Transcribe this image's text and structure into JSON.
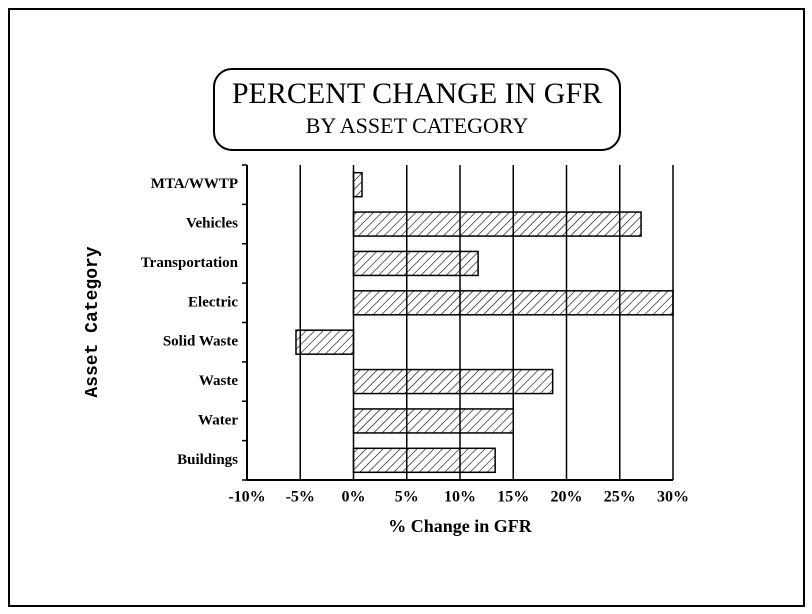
{
  "chart_data": {
    "type": "bar",
    "orientation": "horizontal",
    "title": "PERCENT CHANGE IN GFR",
    "subtitle": "BY ASSET CATEGORY",
    "x_label": "% Change in GFR",
    "y_label": "Asset Category",
    "categories": [
      "MTA/WWTP",
      "Vehicles",
      "Transportation",
      "Electric",
      "Solid Waste",
      "Waste",
      "Water",
      "Buildings"
    ],
    "values": [
      0.8,
      27,
      11.7,
      30,
      -5.4,
      18.7,
      15,
      13.3
    ],
    "color": "#000000",
    "xlim": [
      -10,
      30
    ],
    "xticks": [
      {
        "value": -10,
        "label": "-10%"
      },
      {
        "value": -5,
        "label": "-5%"
      },
      {
        "value": 0,
        "label": "0%"
      },
      {
        "value": 5,
        "label": "5%"
      },
      {
        "value": 10,
        "label": "10%"
      },
      {
        "value": 15,
        "label": "15%"
      },
      {
        "value": 20,
        "label": "20%"
      },
      {
        "value": 25,
        "label": "25%"
      },
      {
        "value": 30,
        "label": "30%"
      }
    ],
    "grid": true
  }
}
